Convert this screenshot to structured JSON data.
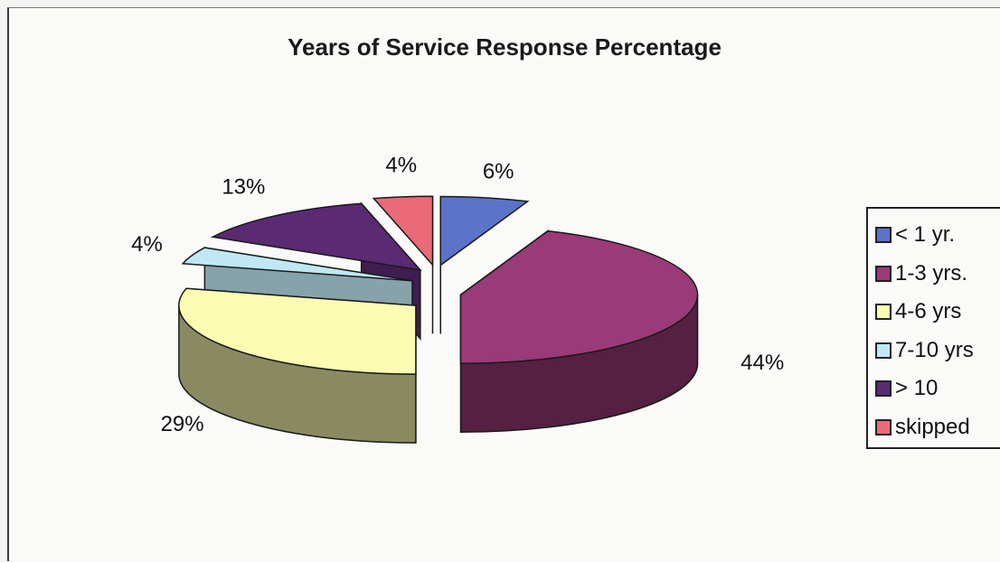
{
  "chart_data": {
    "type": "pie",
    "title": "Years of Service Response Percentage",
    "labels": [
      "< 1 yr.",
      "1-3 yrs.",
      "4-6 yrs",
      "7-10 yrs",
      "> 10",
      "skipped"
    ],
    "values": [
      6,
      44,
      29,
      4,
      13,
      4
    ],
    "value_labels": [
      "6%",
      "44%",
      "29%",
      "4%",
      "13%",
      "4%"
    ],
    "colors": [
      "#5b73c8",
      "#9a3a78",
      "#fbfbb2",
      "#bfe8f4",
      "#5a2a72",
      "#ea6a78"
    ],
    "exploded": true,
    "three_d": true,
    "legend_position": "right"
  }
}
